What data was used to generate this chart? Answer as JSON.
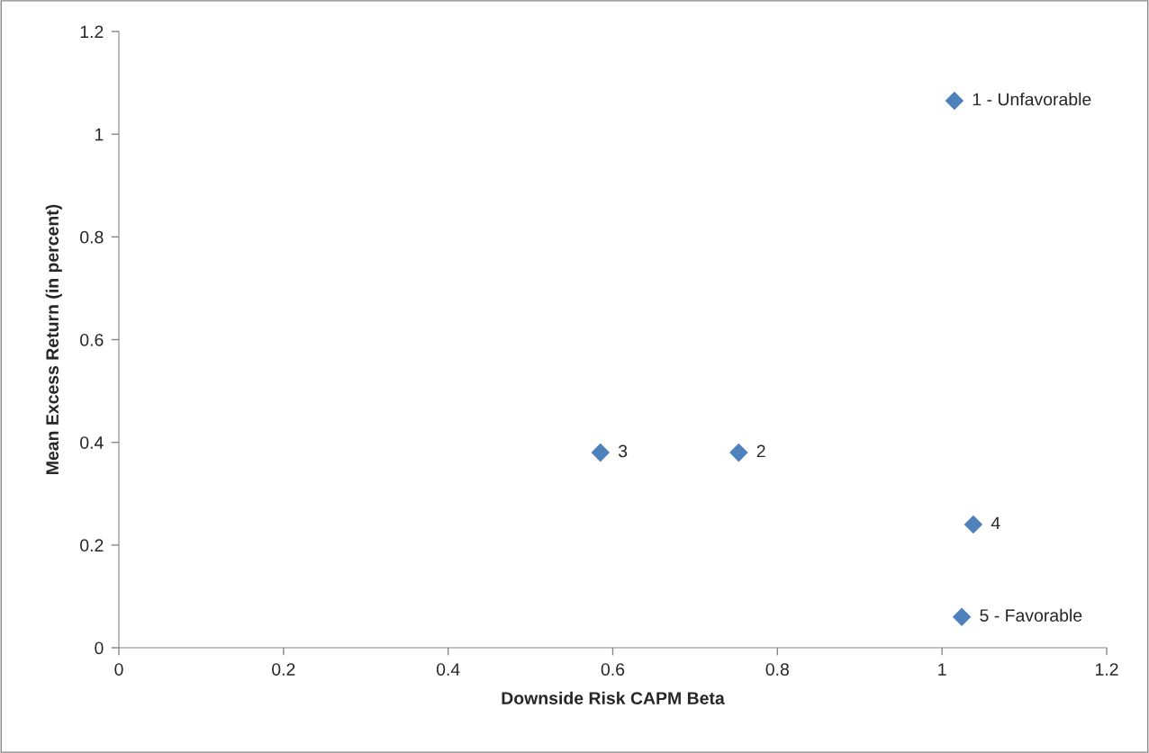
{
  "chart_data": {
    "type": "scatter",
    "xlabel": "Downside Risk CAPM Beta",
    "ylabel": "Mean Excess Return (in percent)",
    "x": [
      1.015,
      0.753,
      0.585,
      1.038,
      1.024
    ],
    "series": [
      {
        "color": "#4f81bd",
        "values": [
          1.065,
          0.38,
          0.38,
          0.24,
          0.06
        ]
      }
    ],
    "marker": "diamond",
    "grid": false,
    "xlim": [
      0,
      1.2
    ],
    "ylim": [
      0,
      1.2
    ],
    "xticks": [
      0,
      0.2,
      0.4,
      0.6,
      0.8,
      1,
      1.2
    ],
    "yticks": [
      0,
      0.2,
      0.4,
      0.6,
      0.8,
      1,
      1.2
    ],
    "annotations": [
      {
        "text": "1 - Unfavorable",
        "x": 1.015,
        "y": 1.065
      },
      {
        "text": "2",
        "x": 0.753,
        "y": 0.38
      },
      {
        "text": "3",
        "x": 0.585,
        "y": 0.38
      },
      {
        "text": "4",
        "x": 1.038,
        "y": 0.24
      },
      {
        "text": "5 - Favorable",
        "x": 1.024,
        "y": 0.06
      }
    ]
  }
}
